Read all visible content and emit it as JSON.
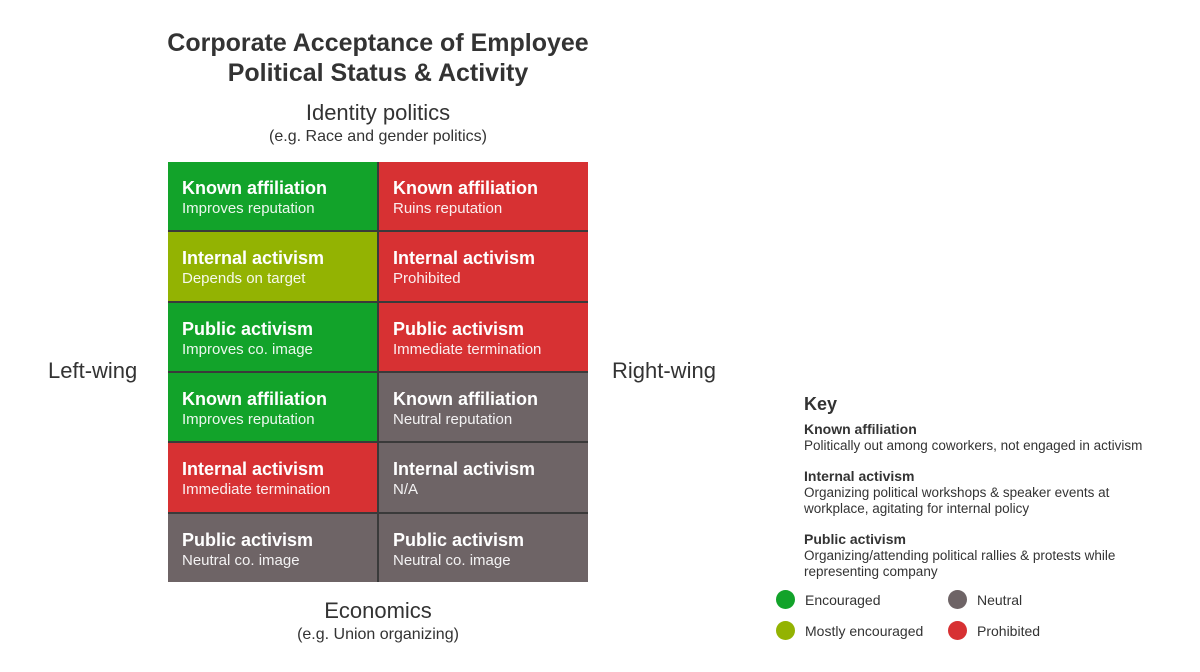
{
  "title_line1": "Corporate Acceptance of Employee",
  "title_line2": "Political Status & Activity",
  "axes": {
    "top": {
      "label": "Identity politics",
      "sub": "(e.g. Race and gender politics)"
    },
    "bottom": {
      "label": "Economics",
      "sub": "(e.g. Union organizing)"
    },
    "left": "Left-wing",
    "right": "Right-wing"
  },
  "colors": {
    "encouraged": "#12a32a",
    "mostly": "#93b302",
    "prohibited": "#d73133",
    "neutral": "#6e6466"
  },
  "cells": [
    {
      "head": "Known affiliation",
      "sub": "Improves reputation",
      "status": "encouraged"
    },
    {
      "head": "Known affiliation",
      "sub": "Ruins reputation",
      "status": "prohibited"
    },
    {
      "head": "Internal activism",
      "sub": "Depends on target",
      "status": "mostly"
    },
    {
      "head": "Internal activism",
      "sub": "Prohibited",
      "status": "prohibited"
    },
    {
      "head": "Public activism",
      "sub": "Improves co. image",
      "status": "encouraged"
    },
    {
      "head": "Public activism",
      "sub": "Immediate termination",
      "status": "prohibited"
    },
    {
      "head": "Known affiliation",
      "sub": "Improves reputation",
      "status": "encouraged"
    },
    {
      "head": "Known affiliation",
      "sub": "Neutral reputation",
      "status": "neutral"
    },
    {
      "head": "Internal activism",
      "sub": "Immediate termination",
      "status": "prohibited"
    },
    {
      "head": "Internal activism",
      "sub": "N/A",
      "status": "neutral"
    },
    {
      "head": "Public activism",
      "sub": "Neutral co. image",
      "status": "neutral"
    },
    {
      "head": "Public activism",
      "sub": "Neutral co. image",
      "status": "neutral"
    }
  ],
  "key": {
    "title": "Key",
    "items": [
      {
        "term": "Known affiliation",
        "def": "Politically out among coworkers, not engaged in activism"
      },
      {
        "term": "Internal activism",
        "def": "Organizing political workshops & speaker events at workplace, agitating for internal policy"
      },
      {
        "term": "Public activism",
        "def": "Organizing/attending political rallies & protests while representing company"
      }
    ]
  },
  "legend": {
    "encouraged": "Encouraged",
    "neutral": "Neutral",
    "mostly": "Mostly encouraged",
    "prohibited": "Prohibited"
  }
}
